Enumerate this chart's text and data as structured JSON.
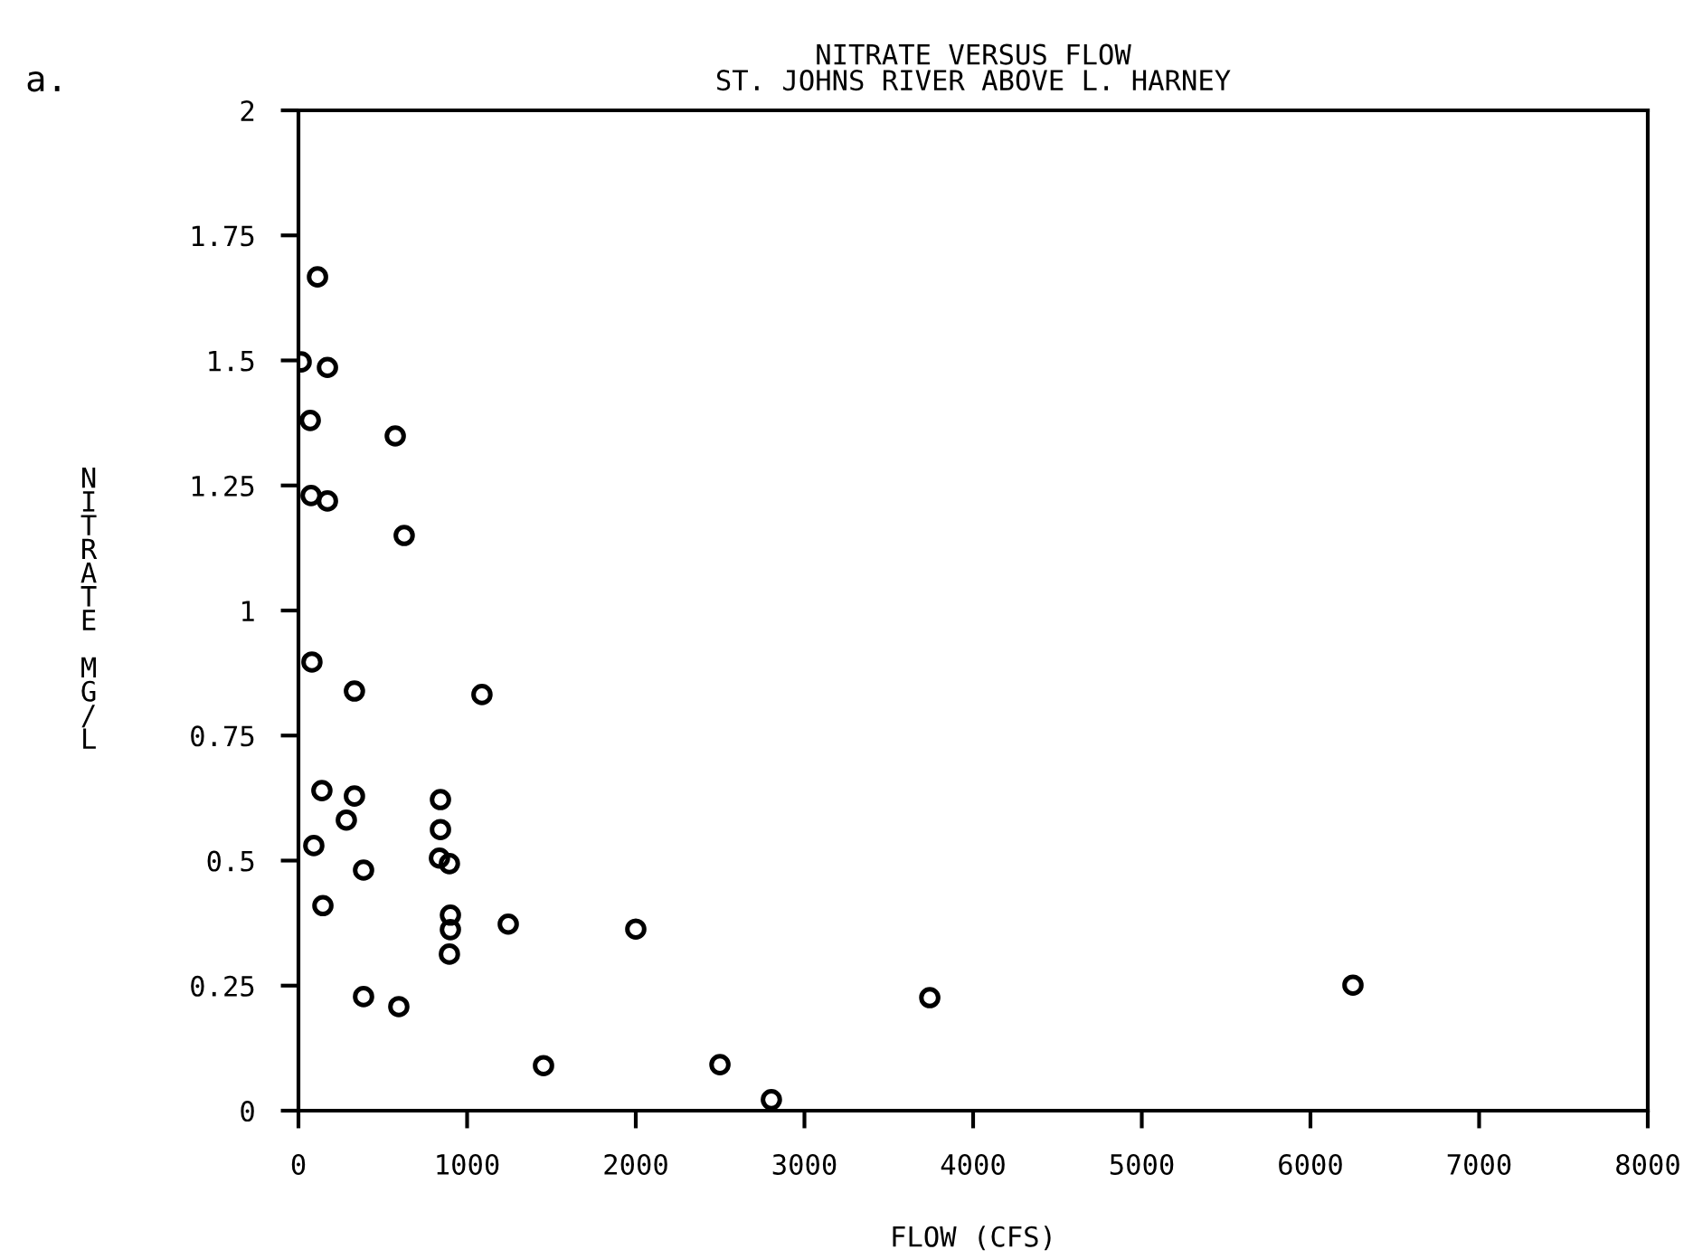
{
  "chart_data": {
    "type": "scatter",
    "title": "NITRATE VERSUS FLOW\nST. JOHNS RIVER ABOVE L. HARNEY",
    "xlabel": "FLOW (CFS)",
    "ylabel": "NITRATE MG/L",
    "annotations": [
      "a."
    ],
    "x": [
      113,
      16,
      172,
      70,
      574,
      75,
      172,
      627,
      80,
      332,
      1088,
      139,
      332,
      284,
      842,
      842,
      836,
      895,
      91,
      386,
      145,
      901,
      901,
      895,
      1244,
      2000,
      386,
      595,
      3743,
      6252,
      1453,
      2499,
      2804
    ],
    "values": [
      1.667,
      1.497,
      1.486,
      1.38,
      1.349,
      1.23,
      1.219,
      1.15,
      0.897,
      0.839,
      0.832,
      0.64,
      0.629,
      0.581,
      0.622,
      0.562,
      0.505,
      0.494,
      0.53,
      0.481,
      0.41,
      0.391,
      0.362,
      0.313,
      0.373,
      0.363,
      0.228,
      0.208,
      0.226,
      0.251,
      0.09,
      0.092,
      0.022
    ],
    "color": "#000000",
    "marker": "circle",
    "xlim": [
      0,
      8000
    ],
    "xticks": [
      0,
      1000,
      2000,
      3000,
      4000,
      5000,
      6000,
      7000,
      8000
    ],
    "ylim": [
      0,
      2
    ],
    "yticks": [
      0,
      0.25,
      0.5,
      0.75,
      1,
      1.25,
      1.5,
      1.75,
      2
    ],
    "grid": false
  }
}
